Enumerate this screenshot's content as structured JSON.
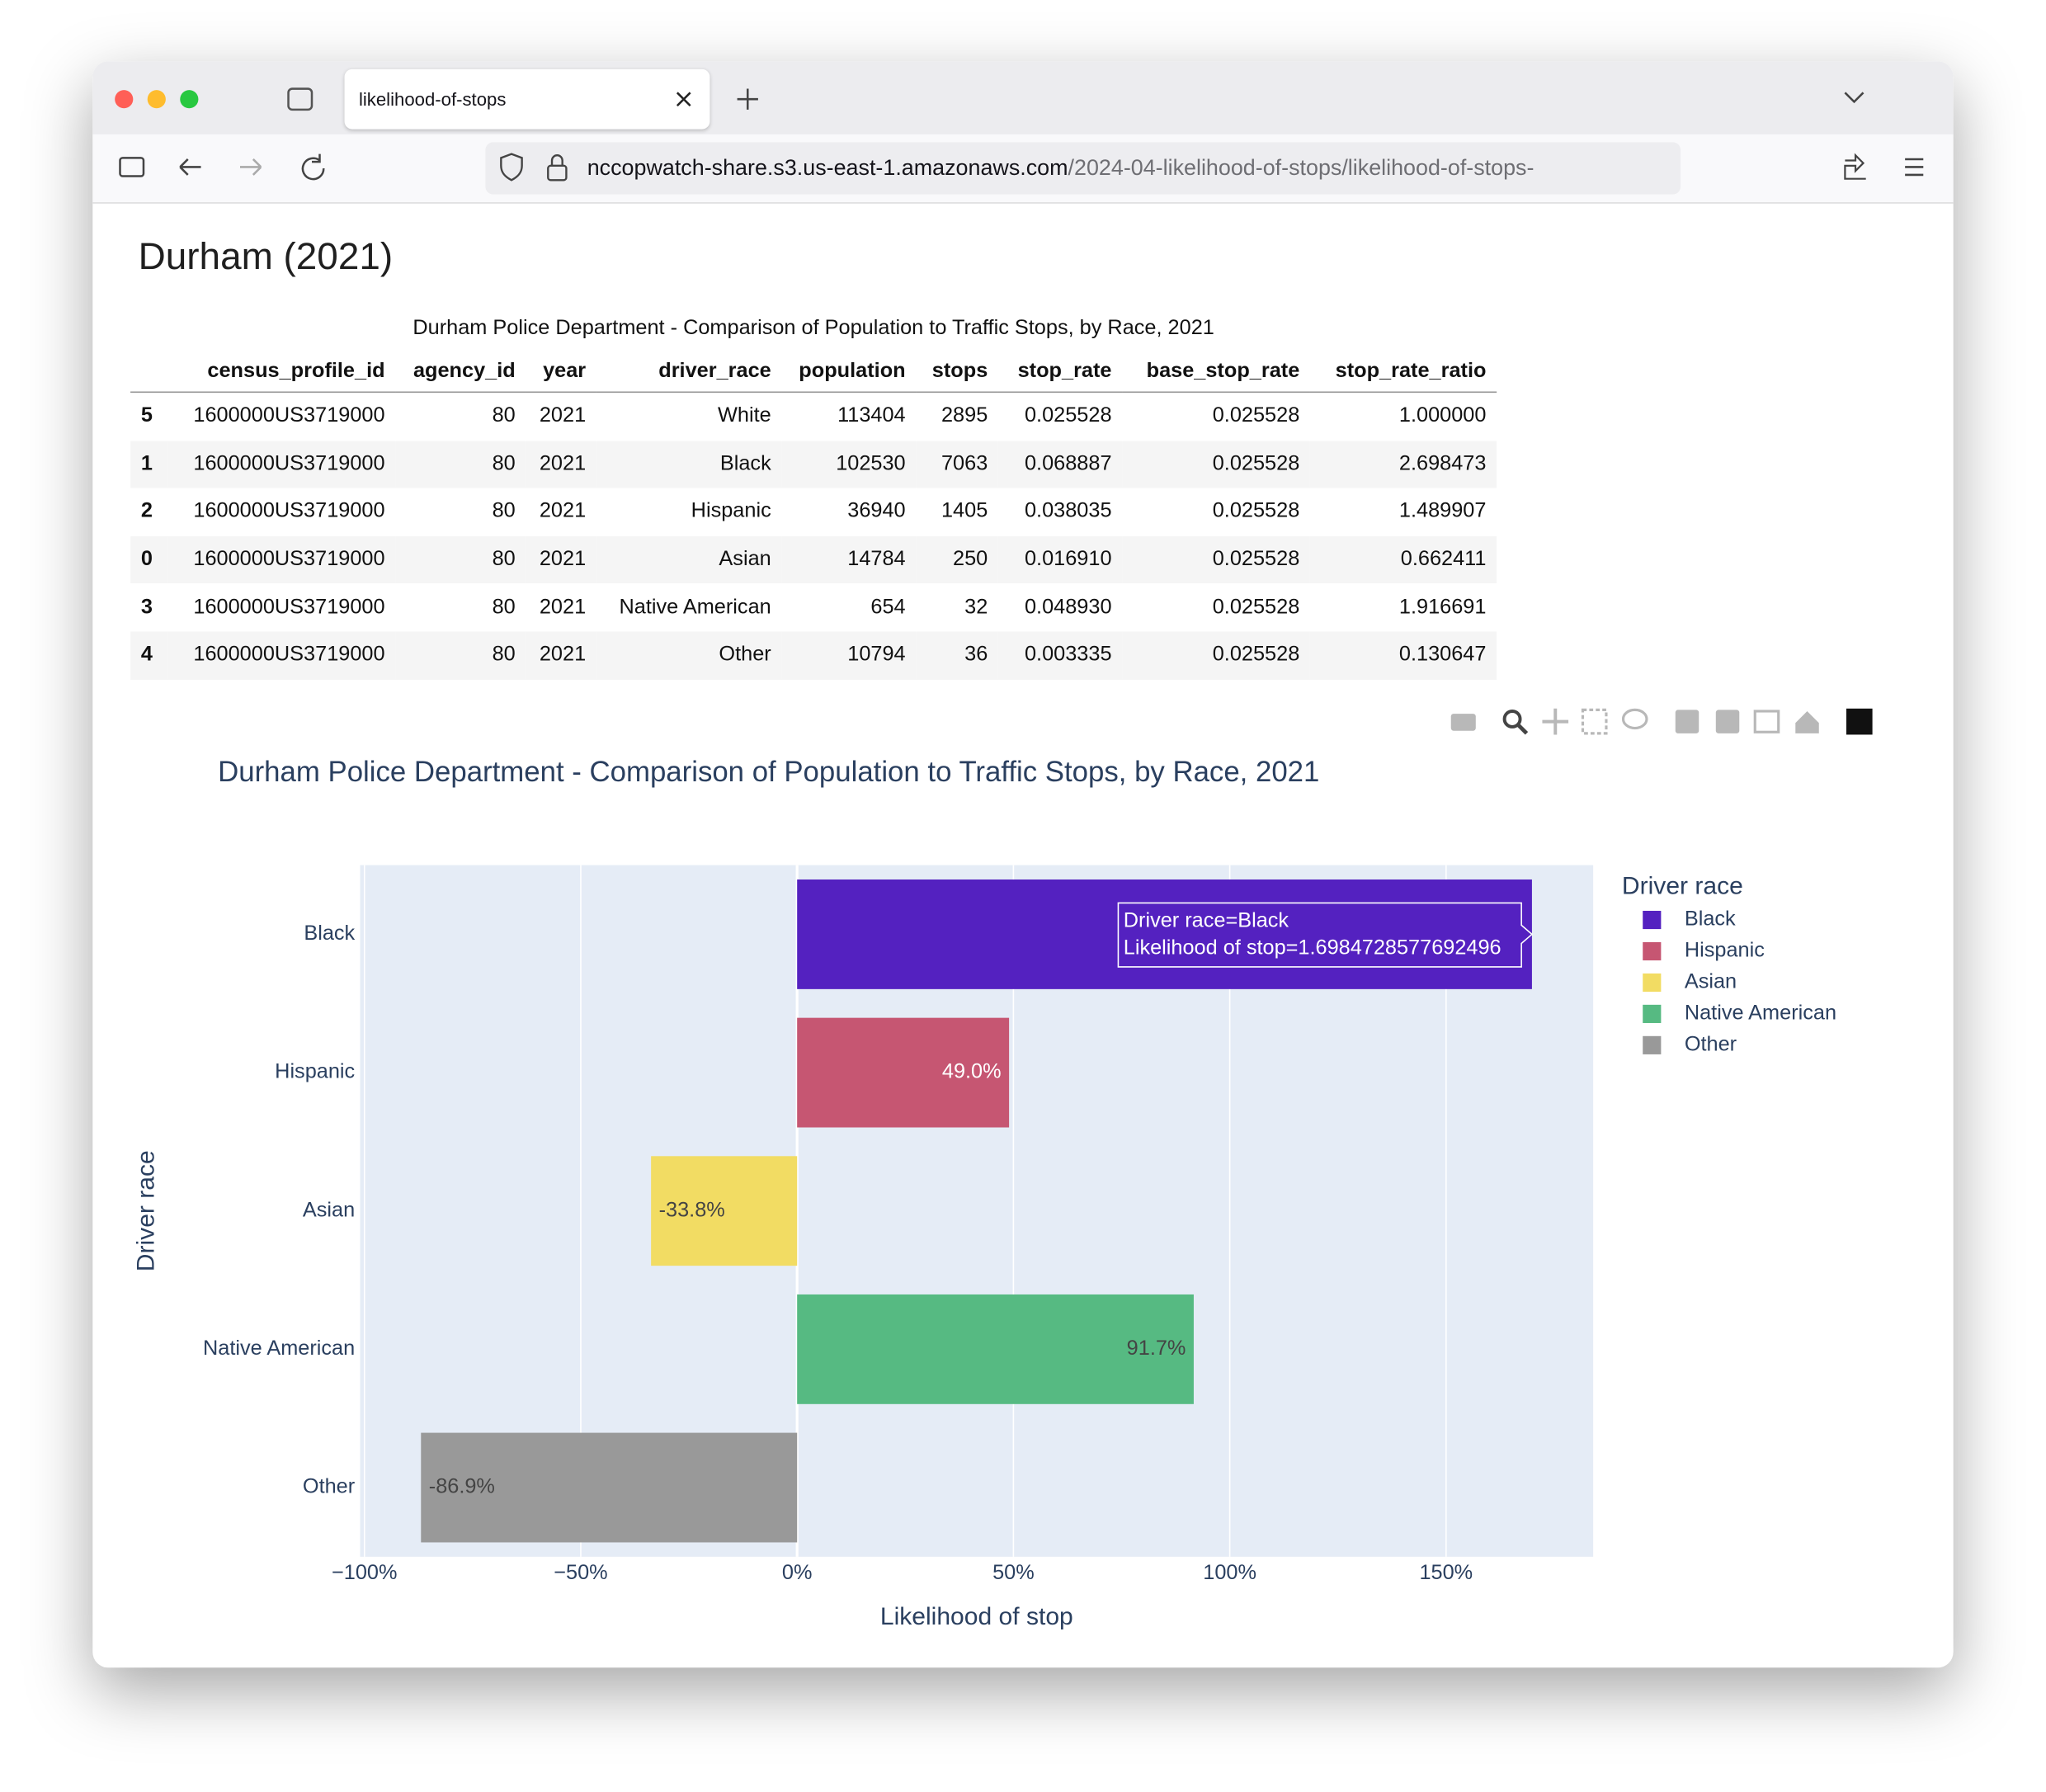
{
  "browser": {
    "tab_title": "likelihood-of-stops",
    "url_host": "nccopwatch-share.s3.us-east-1.amazonaws.com",
    "url_path": "/2024-04-likelihood-of-stops/likelihood-of-stops-"
  },
  "page": {
    "heading": "Durham (2021)"
  },
  "table": {
    "caption": "Durham Police Department - Comparison of Population to Traffic Stops, by Race, 2021",
    "columns": [
      "census_profile_id",
      "agency_id",
      "year",
      "driver_race",
      "population",
      "stops",
      "stop_rate",
      "base_stop_rate",
      "stop_rate_ratio"
    ],
    "index": [
      "5",
      "1",
      "2",
      "0",
      "3",
      "4"
    ],
    "rows": [
      [
        "1600000US3719000",
        "80",
        "2021",
        "White",
        "113404",
        "2895",
        "0.025528",
        "0.025528",
        "1.000000"
      ],
      [
        "1600000US3719000",
        "80",
        "2021",
        "Black",
        "102530",
        "7063",
        "0.068887",
        "0.025528",
        "2.698473"
      ],
      [
        "1600000US3719000",
        "80",
        "2021",
        "Hispanic",
        "36940",
        "1405",
        "0.038035",
        "0.025528",
        "1.489907"
      ],
      [
        "1600000US3719000",
        "80",
        "2021",
        "Asian",
        "14784",
        "250",
        "0.016910",
        "0.025528",
        "0.662411"
      ],
      [
        "1600000US3719000",
        "80",
        "2021",
        "Native American",
        "654",
        "32",
        "0.048930",
        "0.025528",
        "1.916691"
      ],
      [
        "1600000US3719000",
        "80",
        "2021",
        "Other",
        "10794",
        "36",
        "0.003335",
        "0.025528",
        "0.130647"
      ]
    ]
  },
  "chart_data": {
    "type": "hbar",
    "title": "Durham Police Department - Comparison of Population to Traffic Stops, by Race, 2021",
    "x_label": "Likelihood of stop",
    "y_label": "Driver race",
    "categories": [
      "Black",
      "Hispanic",
      "Asian",
      "Native American",
      "Other"
    ],
    "values": [
      169.84728577692496,
      48.9907,
      -33.7589,
      91.6691,
      -86.9353
    ],
    "value_labels": [
      null,
      "49.0%",
      "-33.8%",
      "91.7%",
      "-86.9%"
    ],
    "colors": [
      "#5421c0",
      "#c65672",
      "#f2dc63",
      "#56ba82",
      "#999999"
    ],
    "xlim": [
      -101,
      184
    ],
    "xticks": [
      {
        "value": -100,
        "label": "−100%"
      },
      {
        "value": -50,
        "label": "−50%"
      },
      {
        "value": 0,
        "label": "0%"
      },
      {
        "value": 50,
        "label": "50%"
      },
      {
        "value": 100,
        "label": "100%"
      },
      {
        "value": 150,
        "label": "150%"
      }
    ],
    "grid": true,
    "legend_title": "Driver race",
    "hover_label": [
      "Driver race=Black",
      "Likelihood of stop=1.6984728577692496"
    ]
  }
}
